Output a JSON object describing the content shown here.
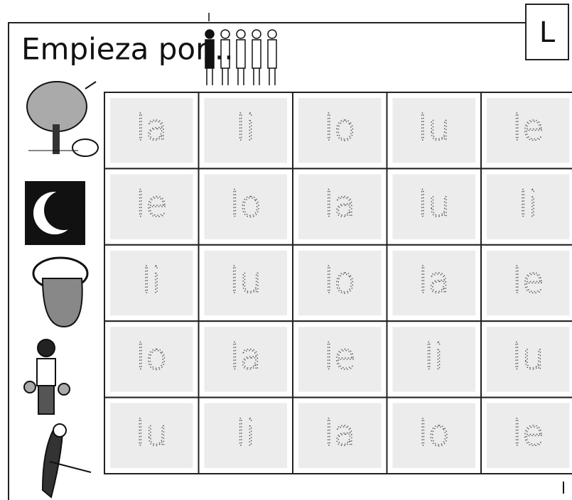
{
  "header": {
    "title": "Empieza por...",
    "letter": "L"
  },
  "table": {
    "rows": [
      [
        "la",
        "li",
        "lo",
        "lu",
        "le"
      ],
      [
        "le",
        "lo",
        "la",
        "lu",
        "li"
      ],
      [
        "li",
        "lu",
        "lo",
        "la",
        "le"
      ],
      [
        "lo",
        "la",
        "le",
        "li",
        "lu"
      ],
      [
        "lu",
        "li",
        "la",
        "lo",
        "le"
      ]
    ]
  }
}
